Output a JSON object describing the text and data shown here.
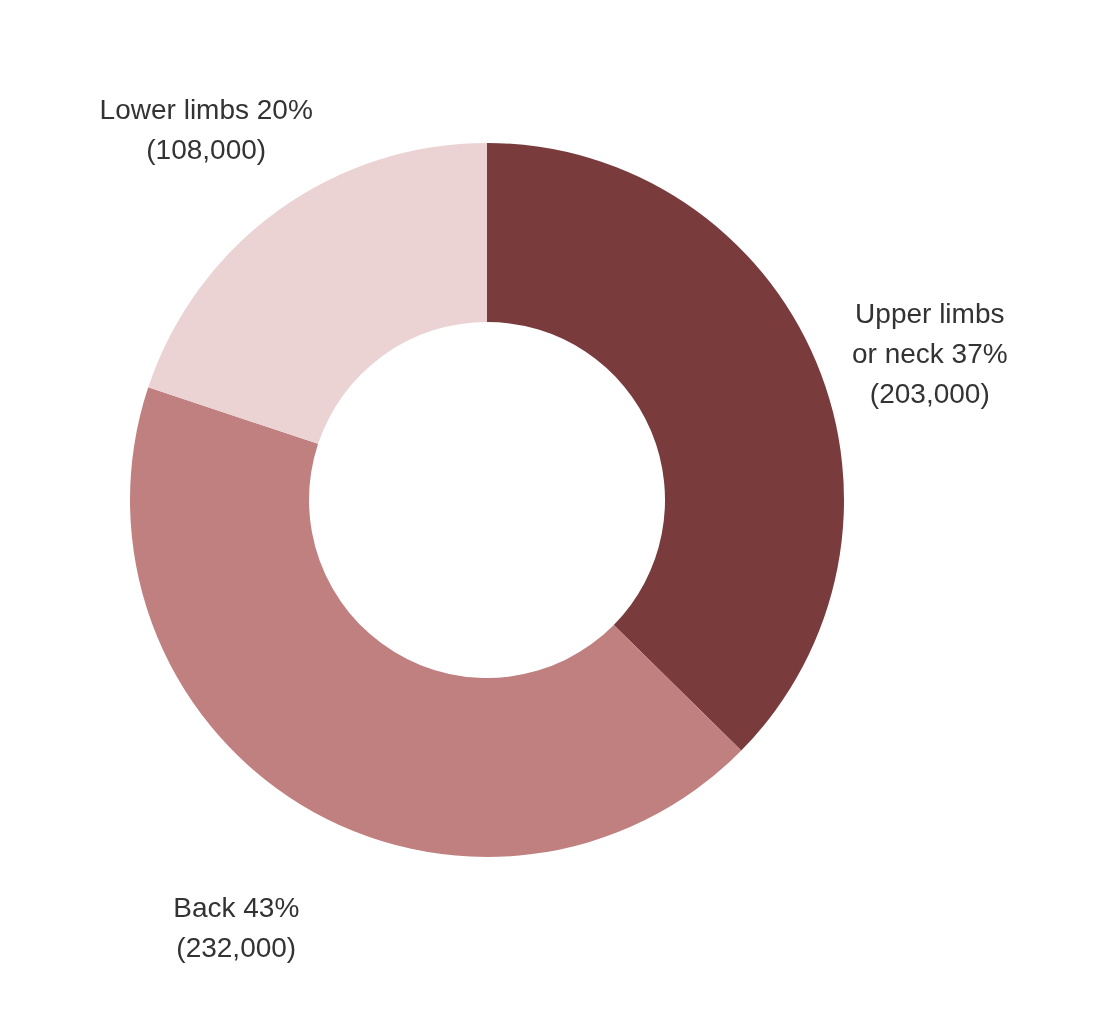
{
  "chart_data": {
    "type": "donut",
    "categories": [
      "Upper limbs or neck",
      "Back",
      "Lower limbs"
    ],
    "values": [
      203000,
      232000,
      108000
    ],
    "value_labels": [
      "37% (203,000)",
      "43% (232,000)",
      "20% (108,000)"
    ],
    "colors": [
      "#7a3b3d",
      "#c08080",
      "#ebd3d4"
    ]
  }
}
